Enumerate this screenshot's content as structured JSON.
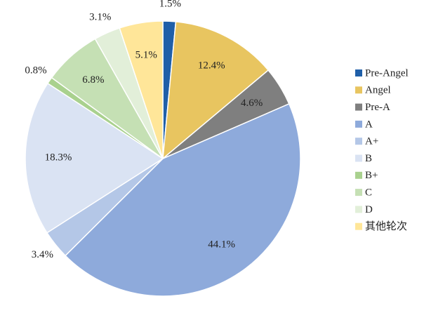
{
  "chart_data": {
    "type": "pie",
    "categories": [
      "Pre-Angel",
      "Angel",
      "Pre-A",
      "A",
      "A+",
      "B",
      "B+",
      "C",
      "D",
      "其他轮次"
    ],
    "values": [
      1.5,
      12.4,
      4.6,
      44.1,
      3.4,
      18.3,
      0.8,
      6.8,
      3.1,
      5.1
    ],
    "value_labels": [
      "1.5%",
      "12.4%",
      "4.6%",
      "44.1%",
      "3.4%",
      "18.3%",
      "0.8%",
      "6.8%",
      "3.1%",
      "5.1%"
    ],
    "colors": [
      "#1f5fa8",
      "#e8c560",
      "#7f7f7f",
      "#8eaadb",
      "#b4c7e7",
      "#dae3f3",
      "#a9d18e",
      "#c5e0b4",
      "#e2efd9",
      "#ffe699"
    ],
    "legend": "right"
  }
}
